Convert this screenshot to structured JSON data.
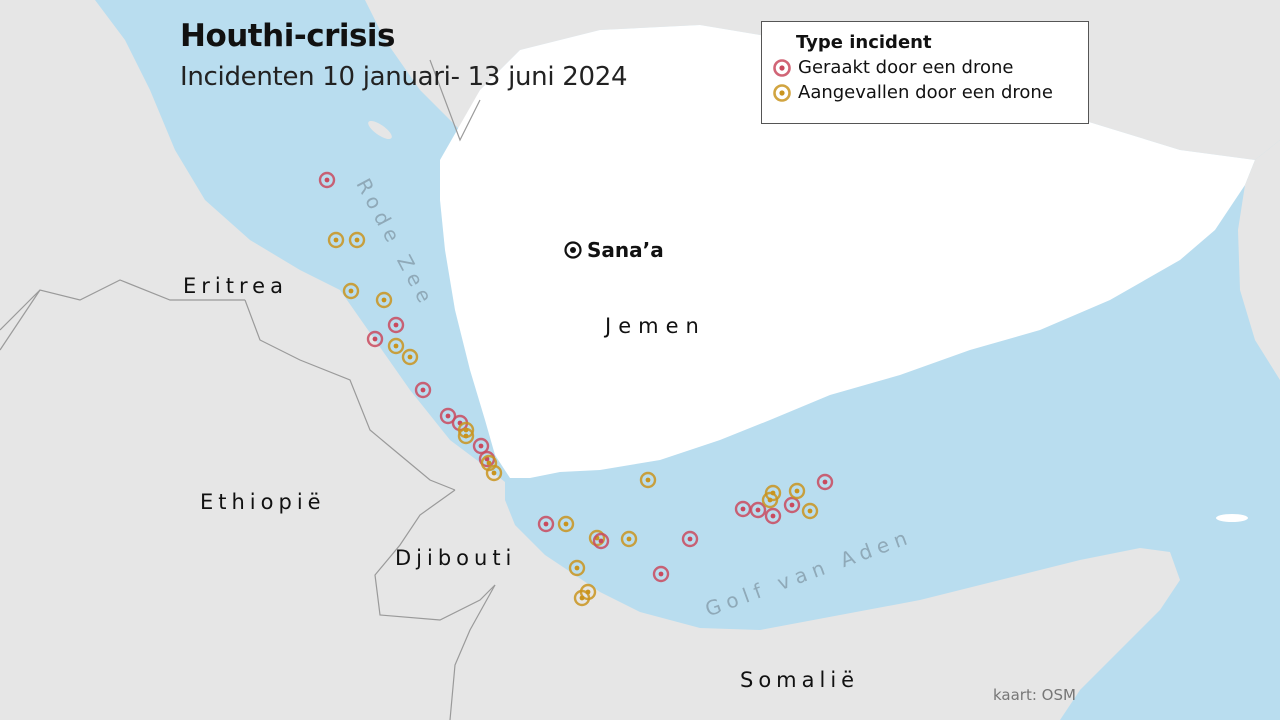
{
  "title": "Houthi-crisis",
  "subtitle": "Incidenten 10 januari- 13 juni 2024",
  "legend": {
    "title": "Type incident",
    "items": [
      {
        "label": "Geraakt door een drone",
        "color": "#c94a5e"
      },
      {
        "label": "Aangevallen door een drone",
        "color": "#c9941e"
      }
    ]
  },
  "labels": {
    "eritrea": "Eritrea",
    "ethiopia": "Ethiopië",
    "djibouti": "Djibouti",
    "yemen": "Jemen",
    "somalia": "Somalië",
    "red_sea": "Rode Zee",
    "gulf_aden": "Golf van Aden",
    "city": "Sana’a"
  },
  "credit": "kaart: OSM",
  "colors": {
    "sea": "#b9ddef",
    "land": "#e6e6e6",
    "yemen": "#ffffff",
    "hit": "#c94a5e",
    "attacked": "#c9941e"
  }
}
